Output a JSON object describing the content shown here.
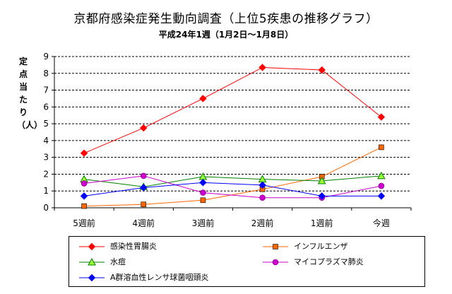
{
  "title": "京都府感染症発生動向調査（上位5疾患の推移グラフ）",
  "subtitle": "平成24年1週（1月2日～1月8日）",
  "chart_data": {
    "type": "line",
    "title": "京都府感染症発生動向調査（上位5疾患の推移グラフ）",
    "subtitle": "平成24年1週（1月2日～1月8日）",
    "ylabel": "定点当たり（人）",
    "xlabel": "",
    "categories": [
      "5週前",
      "4週前",
      "3週前",
      "2週前",
      "1週前",
      "今週"
    ],
    "ylim": [
      0,
      9
    ],
    "yticks": [
      "0",
      "1",
      "2",
      "3",
      "4",
      "5",
      "6",
      "7",
      "8",
      "9"
    ],
    "grid": "horizontal dashed",
    "legend_position": "bottom",
    "series": [
      {
        "name": "感染性胃腸炎",
        "color": "#ff0000",
        "marker": "diamond",
        "values": [
          3.25,
          4.75,
          6.5,
          8.35,
          8.2,
          5.4
        ]
      },
      {
        "name": "インフルエンザ",
        "color": "#ff6600",
        "marker": "square",
        "values": [
          0.1,
          0.2,
          0.45,
          1.1,
          1.85,
          3.6
        ]
      },
      {
        "name": "水痘",
        "color": "#008000",
        "marker": "triangle",
        "values": [
          1.7,
          1.25,
          1.85,
          1.7,
          1.6,
          1.9
        ]
      },
      {
        "name": "マイコプラズマ肺炎",
        "color": "#cc00cc",
        "marker": "circle",
        "values": [
          1.45,
          1.9,
          0.9,
          0.6,
          0.6,
          1.3
        ]
      },
      {
        "name": "A群溶血性レンサ球菌咽頭炎",
        "color": "#0000ff",
        "marker": "diamond",
        "values": [
          0.7,
          1.2,
          1.5,
          1.35,
          0.7,
          0.7
        ]
      }
    ]
  }
}
